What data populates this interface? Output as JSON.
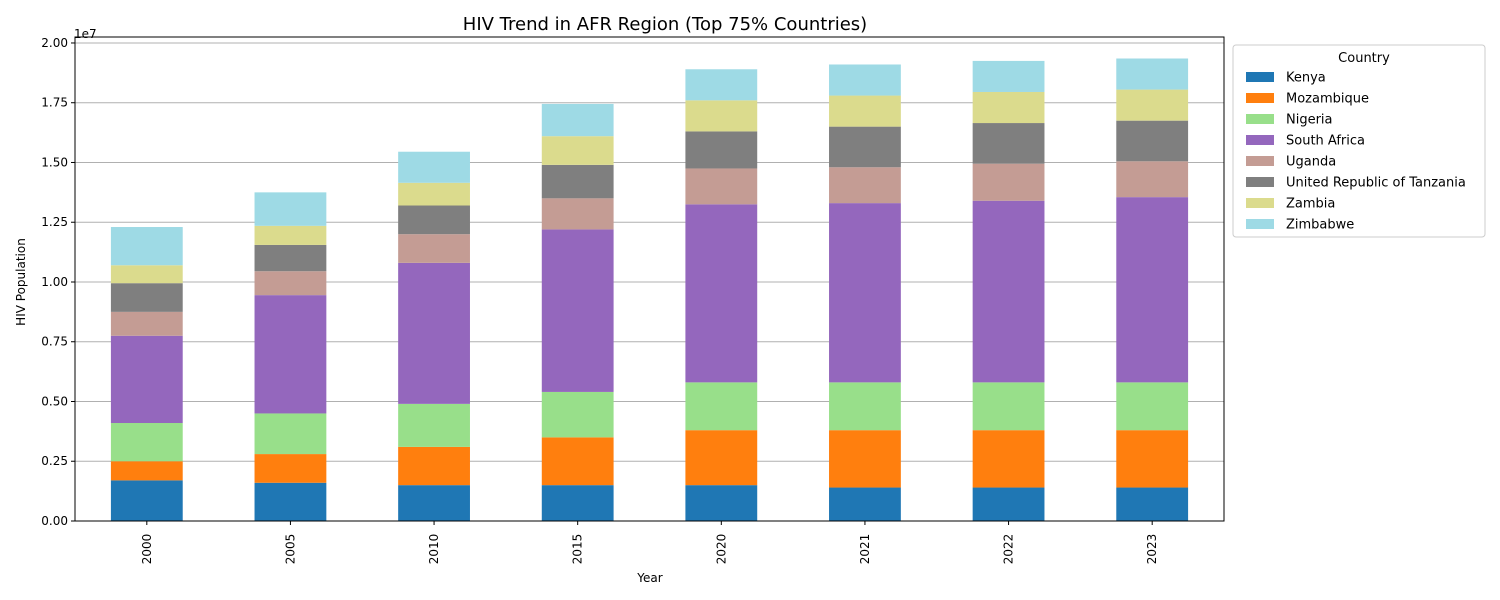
{
  "chart_data": {
    "type": "bar",
    "stacked": true,
    "title": "HIV Trend in AFR Region (Top 75% Countries)",
    "xlabel": "Year",
    "ylabel": "HIV Population",
    "scale_note": "1e7",
    "ylim": [
      0,
      20250000
    ],
    "yticks": [
      {
        "value": 0,
        "label": "0.00"
      },
      {
        "value": 2500000,
        "label": "0.25"
      },
      {
        "value": 5000000,
        "label": "0.50"
      },
      {
        "value": 7500000,
        "label": "0.75"
      },
      {
        "value": 10000000,
        "label": "1.00"
      },
      {
        "value": 12500000,
        "label": "1.25"
      },
      {
        "value": 15000000,
        "label": "1.50"
      },
      {
        "value": 17500000,
        "label": "1.75"
      },
      {
        "value": 20000000,
        "label": "2.00"
      }
    ],
    "grid": "y",
    "legend_title": "Country",
    "legend_placement": "outside-right-top",
    "categories": [
      "2000",
      "2005",
      "2010",
      "2015",
      "2020",
      "2021",
      "2022",
      "2023"
    ],
    "series": [
      {
        "name": "Kenya",
        "color": "#1f77b4",
        "values": [
          1700000,
          1600000,
          1500000,
          1500000,
          1500000,
          1400000,
          1400000,
          1400000
        ]
      },
      {
        "name": "Mozambique",
        "color": "#ff7f0e",
        "values": [
          800000,
          1200000,
          1600000,
          2000000,
          2300000,
          2400000,
          2400000,
          2400000
        ]
      },
      {
        "name": "Nigeria",
        "color": "#98df8a",
        "values": [
          1600000,
          1700000,
          1800000,
          1900000,
          2000000,
          2000000,
          2000000,
          2000000
        ]
      },
      {
        "name": "South Africa",
        "color": "#9467bd",
        "values": [
          3650000,
          4950000,
          5900000,
          6800000,
          7450000,
          7500000,
          7600000,
          7750000
        ]
      },
      {
        "name": "Uganda",
        "color": "#c49c94",
        "values": [
          1000000,
          1000000,
          1200000,
          1300000,
          1500000,
          1500000,
          1550000,
          1500000
        ]
      },
      {
        "name": "United Republic of Tanzania",
        "color": "#7f7f7f",
        "values": [
          1200000,
          1100000,
          1200000,
          1400000,
          1550000,
          1700000,
          1700000,
          1700000
        ]
      },
      {
        "name": "Zambia",
        "color": "#dbdb8d",
        "values": [
          750000,
          800000,
          950000,
          1200000,
          1300000,
          1300000,
          1300000,
          1300000
        ]
      },
      {
        "name": "Zimbabwe",
        "color": "#9edae5",
        "values": [
          1600000,
          1400000,
          1300000,
          1350000,
          1300000,
          1300000,
          1300000,
          1300000
        ]
      }
    ]
  }
}
